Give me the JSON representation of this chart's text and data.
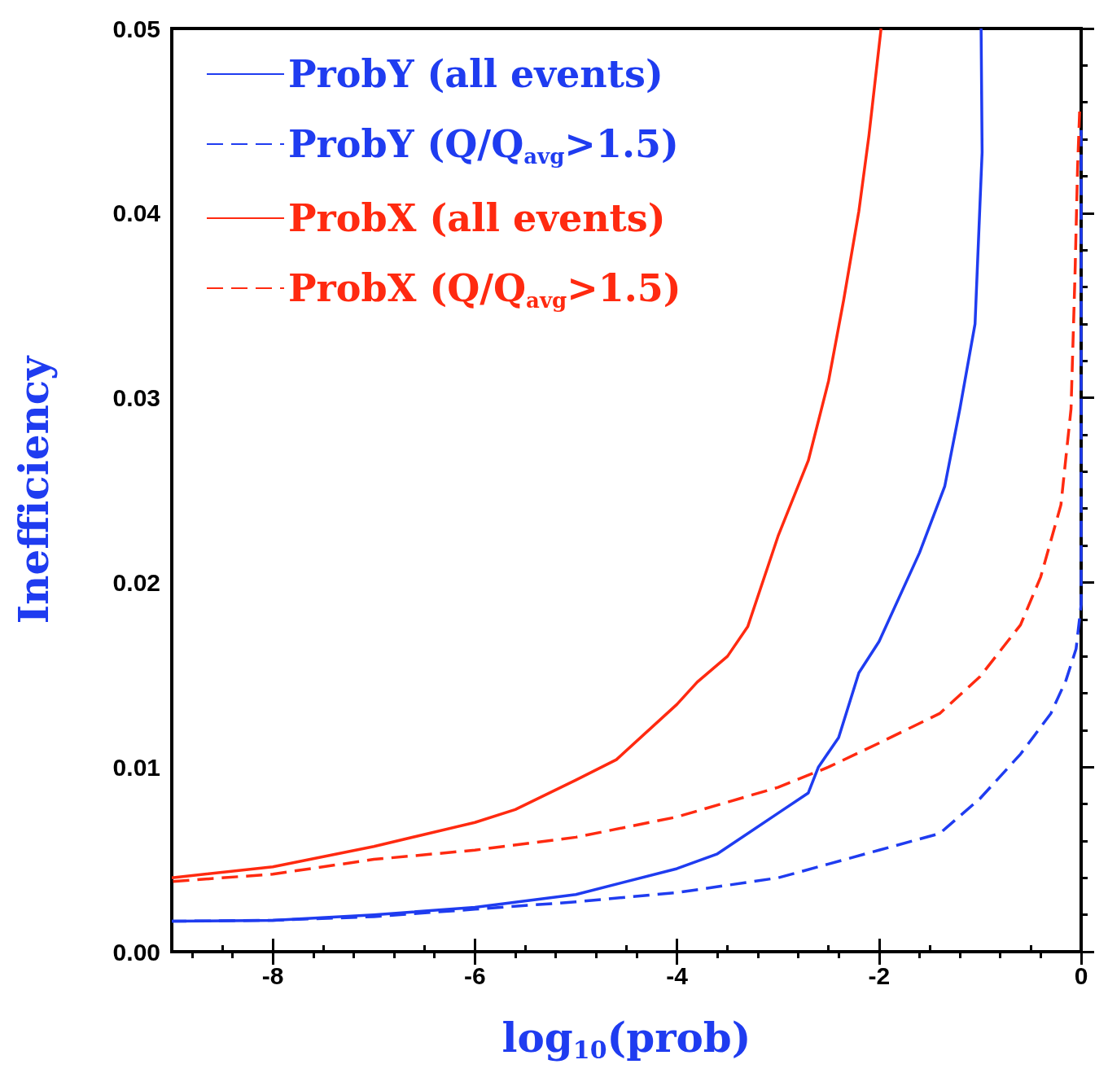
{
  "chart_data": {
    "type": "line",
    "xlabel": "log$_{10}$(prob)",
    "ylabel": "Inefficiency",
    "xlim": [
      -9,
      0
    ],
    "ylim": [
      0,
      0.05
    ],
    "xticks": [
      -8,
      -6,
      -4,
      -2,
      0
    ],
    "yticks": [
      {
        "value": 0,
        "label": "0.00"
      },
      {
        "value": 0.01,
        "label": "0.01"
      },
      {
        "value": 0.02,
        "label": "0.02"
      },
      {
        "value": 0.03,
        "label": "0.03"
      },
      {
        "value": 0.04,
        "label": "0.04"
      },
      {
        "value": 0.05,
        "label": "0.05"
      }
    ],
    "grid": false,
    "legend": "top left",
    "marker": "none",
    "series": [
      {
        "name": "ProbY (all events)",
        "color": "#1f3cf0",
        "line_style": "solid",
        "x": [
          -9,
          -8,
          -7,
          -6,
          -5,
          -4,
          -3.6,
          -3,
          -2.7,
          -2.6,
          -2.4,
          -2.2,
          -2,
          -1.6,
          -1.35,
          -1.2,
          -1.05,
          -0.98,
          -0.99
        ],
        "values": [
          0.00165,
          0.0017,
          0.002,
          0.0024,
          0.0031,
          0.0045,
          0.0053,
          0.0075,
          0.0086,
          0.01,
          0.0116,
          0.0151,
          0.0168,
          0.0216,
          0.0252,
          0.0294,
          0.034,
          0.0433,
          0.05
        ]
      },
      {
        "name": "ProbY (Q/Q$_{avg}$>1.5)",
        "color": "#1f3cf0",
        "line_style": "dashed",
        "x": [
          -9,
          -8,
          -7,
          -6,
          -5,
          -4,
          -3,
          -2,
          -1.4,
          -1,
          -0.6,
          -0.3,
          -0.15,
          -0.05,
          0,
          0
        ],
        "values": [
          0.00165,
          0.0017,
          0.0019,
          0.0023,
          0.0027,
          0.0032,
          0.004,
          0.0055,
          0.0064,
          0.0083,
          0.0107,
          0.0129,
          0.0147,
          0.0164,
          0.0188,
          0.0445
        ]
      },
      {
        "name": "ProbX (all events)",
        "color": "#ff2a10",
        "line_style": "solid",
        "x": [
          -9,
          -8,
          -7,
          -6,
          -5.6,
          -5,
          -4.6,
          -4,
          -3.8,
          -3.5,
          -3.3,
          -3,
          -2.7,
          -2.5,
          -2.35,
          -2.2,
          -2.1,
          -1.98
        ],
        "values": [
          0.004,
          0.0046,
          0.0057,
          0.007,
          0.0077,
          0.0093,
          0.0104,
          0.0134,
          0.0146,
          0.016,
          0.0176,
          0.0225,
          0.0266,
          0.0309,
          0.0353,
          0.0401,
          0.0442,
          0.05
        ]
      },
      {
        "name": "ProbX (Q/Q$_{avg}$>1.5)",
        "color": "#ff2a10",
        "line_style": "dashed",
        "x": [
          -9,
          -8,
          -7,
          -6,
          -5,
          -4,
          -3,
          -2.5,
          -2,
          -1.4,
          -1,
          -0.6,
          -0.4,
          -0.2,
          -0.1,
          -0.06,
          -0.035,
          -0.015
        ],
        "values": [
          0.0038,
          0.0042,
          0.005,
          0.0055,
          0.0062,
          0.0073,
          0.0089,
          0.01,
          0.0113,
          0.0129,
          0.0149,
          0.0177,
          0.0203,
          0.0242,
          0.0294,
          0.0368,
          0.0425,
          0.0455
        ]
      }
    ]
  }
}
